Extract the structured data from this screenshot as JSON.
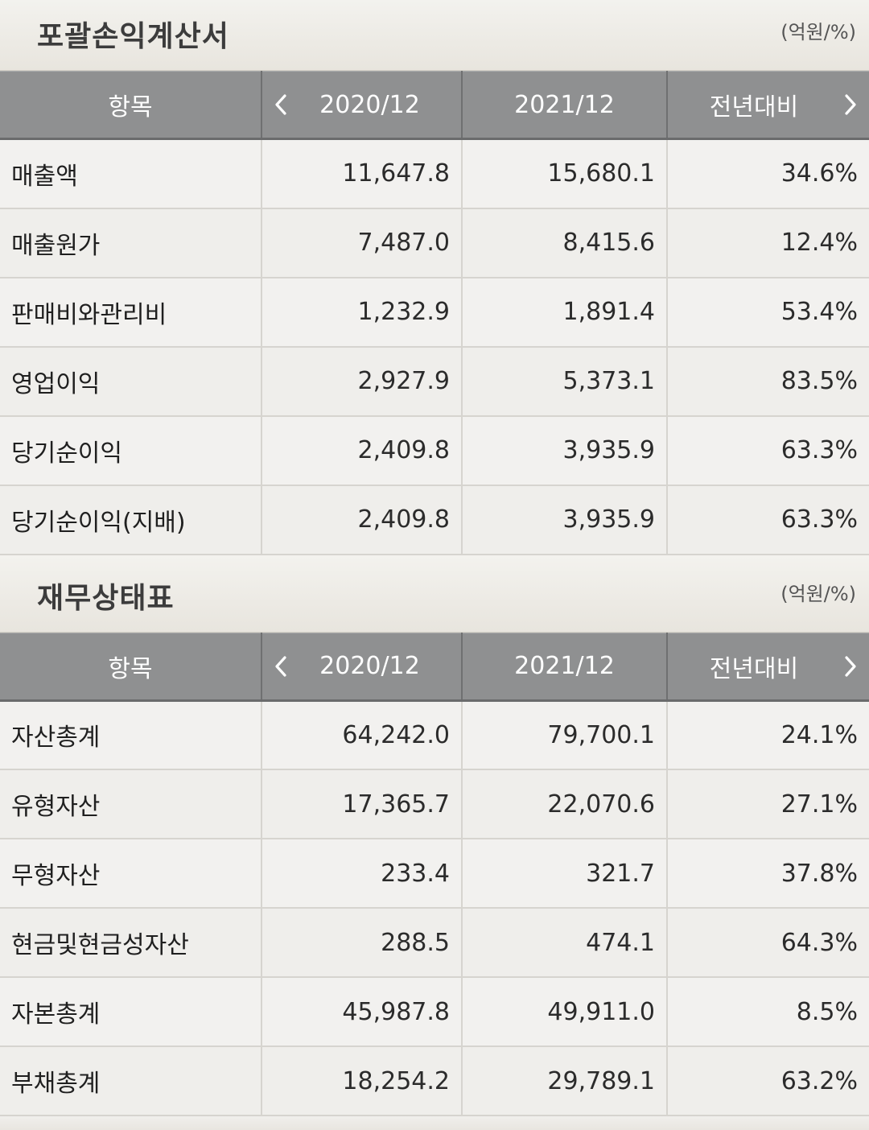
{
  "income": {
    "title": "포괄손익계산서",
    "unit": "(억원/%)",
    "headers": [
      "항목",
      "2020/12",
      "2021/12",
      "전년대비"
    ],
    "rows": [
      [
        "매출액",
        "11,647.8",
        "15,680.1",
        "34.6%"
      ],
      [
        "매출원가",
        "7,487.0",
        "8,415.6",
        "12.4%"
      ],
      [
        "판매비와관리비",
        "1,232.9",
        "1,891.4",
        "53.4%"
      ],
      [
        "영업이익",
        "2,927.9",
        "5,373.1",
        "83.5%"
      ],
      [
        "당기순이익",
        "2,409.8",
        "3,935.9",
        "63.3%"
      ],
      [
        "당기순이익(지배)",
        "2,409.8",
        "3,935.9",
        "63.3%"
      ]
    ]
  },
  "balance": {
    "title": "재무상태표",
    "unit": "(억원/%)",
    "headers": [
      "항목",
      "2020/12",
      "2021/12",
      "전년대비"
    ],
    "rows": [
      [
        "자산총계",
        "64,242.0",
        "79,700.1",
        "24.1%"
      ],
      [
        "유형자산",
        "17,365.7",
        "22,070.6",
        "27.1%"
      ],
      [
        "무형자산",
        "233.4",
        "321.7",
        "37.8%"
      ],
      [
        "현금및현금성자산",
        "288.5",
        "474.1",
        "64.3%"
      ],
      [
        "자본총계",
        "45,987.8",
        "49,911.0",
        "8.5%"
      ],
      [
        "부채총계",
        "18,254.2",
        "29,789.1",
        "63.2%"
      ]
    ]
  },
  "icons": {
    "prev": "chevron-left-icon",
    "next": "chevron-right-icon"
  },
  "colors": {
    "header_bg": "#8f9091",
    "row_bg": "#f2f1ef",
    "section_bg": "#ebe8e1"
  }
}
